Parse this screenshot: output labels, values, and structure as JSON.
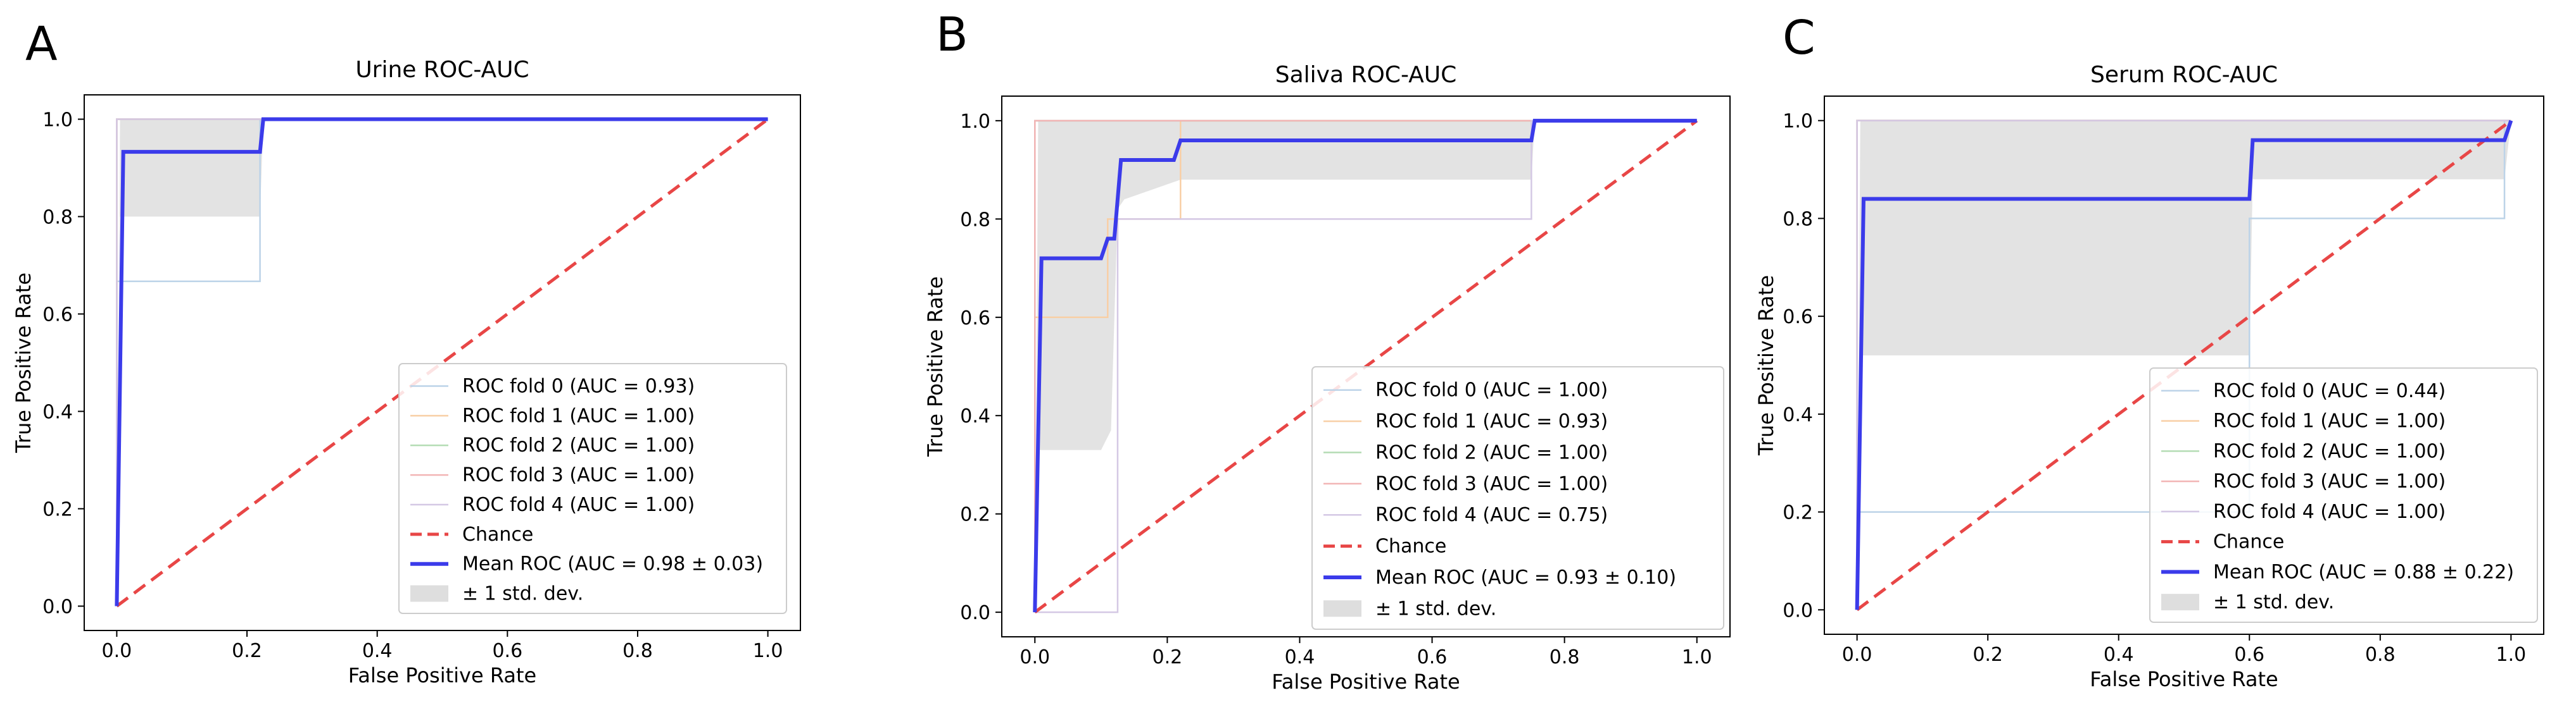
{
  "chart_data": [
    {
      "type": "line",
      "panel_letter": "A",
      "title": "Urine ROC-AUC",
      "xlabel": "False Positive Rate",
      "ylabel": "True Positive Rate",
      "xlim": [
        -0.05,
        1.05
      ],
      "ylim": [
        -0.05,
        1.05
      ],
      "xticks": [
        "0.0",
        "0.2",
        "0.4",
        "0.6",
        "0.8",
        "1.0"
      ],
      "yticks": [
        "0.0",
        "0.2",
        "0.4",
        "0.6",
        "0.8",
        "1.0"
      ],
      "legend_position": "lower right",
      "band": {
        "name": "± 1 std. dev.",
        "x": [
          0,
          0.005,
          0.22,
          0.225,
          1.0
        ],
        "upper": [
          0,
          1.0,
          1.0,
          1.0,
          1.0
        ],
        "lower": [
          0,
          0.8,
          0.8,
          1.0,
          1.0
        ]
      },
      "series": [
        {
          "name": "ROC fold 0 (AUC = 0.93)",
          "color": "#bcd3e8",
          "x": [
            0,
            0,
            0.22,
            0.22,
            1.0
          ],
          "y": [
            0,
            0.667,
            0.667,
            1.0,
            1.0
          ]
        },
        {
          "name": "ROC fold 1 (AUC = 1.00)",
          "color": "#f8cfa6",
          "x": [
            0,
            0,
            1.0
          ],
          "y": [
            0,
            1.0,
            1.0
          ]
        },
        {
          "name": "ROC fold 2 (AUC = 1.00)",
          "color": "#b4dcb4",
          "x": [
            0,
            0,
            1.0
          ],
          "y": [
            0,
            1.0,
            1.0
          ]
        },
        {
          "name": "ROC fold 3 (AUC = 1.00)",
          "color": "#f2b4b4",
          "x": [
            0,
            0,
            1.0
          ],
          "y": [
            0,
            1.0,
            1.0
          ]
        },
        {
          "name": "ROC fold 4 (AUC = 1.00)",
          "color": "#d4c8e4",
          "x": [
            0,
            0,
            1.0
          ],
          "y": [
            0,
            1.0,
            1.0
          ]
        },
        {
          "name": "Chance",
          "color": "#e84646",
          "dashed": true,
          "x": [
            0,
            1.0
          ],
          "y": [
            0,
            1.0
          ]
        },
        {
          "name": "Mean ROC (AUC = 0.98 ± 0.03)",
          "color": "#3b3bea",
          "bold": true,
          "x": [
            0,
            0.01,
            0.22,
            0.225,
            1.0
          ],
          "y": [
            0,
            0.933,
            0.933,
            1.0,
            1.0
          ]
        }
      ],
      "legend": [
        "ROC fold 0 (AUC = 0.93)",
        "ROC fold 1 (AUC = 1.00)",
        "ROC fold 2 (AUC = 1.00)",
        "ROC fold 3 (AUC = 1.00)",
        "ROC fold 4 (AUC = 1.00)",
        "Chance",
        "Mean ROC (AUC = 0.98 ± 0.03)",
        "± 1 std. dev."
      ]
    },
    {
      "type": "line",
      "panel_letter": "B",
      "title": "Saliva ROC-AUC",
      "xlabel": "False Positive Rate",
      "ylabel": "True Positive Rate",
      "xlim": [
        -0.05,
        1.05
      ],
      "ylim": [
        -0.05,
        1.05
      ],
      "xticks": [
        "0.0",
        "0.2",
        "0.4",
        "0.6",
        "0.8",
        "1.0"
      ],
      "yticks": [
        "0.0",
        "0.2",
        "0.4",
        "0.6",
        "0.8",
        "1.0"
      ],
      "legend_position": "lower right",
      "band": {
        "name": "± 1 std. dev.",
        "x": [
          0,
          0.005,
          0.1,
          0.115,
          0.125,
          0.135,
          0.22,
          0.225,
          0.75,
          0.755,
          1.0
        ],
        "upper": [
          0,
          1.0,
          1.0,
          1.0,
          1.0,
          1.0,
          1.0,
          1.0,
          1.0,
          1.0,
          1.0
        ],
        "lower": [
          0,
          0.33,
          0.33,
          0.37,
          0.82,
          0.84,
          0.88,
          0.88,
          0.88,
          1.0,
          1.0
        ]
      },
      "series": [
        {
          "name": "ROC fold 0 (AUC = 1.00)",
          "color": "#bcd3e8",
          "x": [
            0,
            0,
            1.0
          ],
          "y": [
            0,
            1.0,
            1.0
          ]
        },
        {
          "name": "ROC fold 1 (AUC = 0.93)",
          "color": "#f8cfa6",
          "x": [
            0,
            0,
            0.11,
            0.11,
            0.22,
            0.22,
            1.0
          ],
          "y": [
            0,
            0.6,
            0.6,
            0.8,
            0.8,
            1.0,
            1.0
          ]
        },
        {
          "name": "ROC fold 2 (AUC = 1.00)",
          "color": "#b4dcb4",
          "x": [
            0,
            0,
            1.0
          ],
          "y": [
            0,
            1.0,
            1.0
          ]
        },
        {
          "name": "ROC fold 3 (AUC = 1.00)",
          "color": "#f2b4b4",
          "x": [
            0,
            0,
            1.0
          ],
          "y": [
            0,
            1.0,
            1.0
          ]
        },
        {
          "name": "ROC fold 4 (AUC = 0.75)",
          "color": "#d4c8e4",
          "x": [
            0,
            0.125,
            0.125,
            0.75,
            0.75,
            1.0
          ],
          "y": [
            0,
            0,
            0.8,
            0.8,
            1.0,
            1.0
          ]
        },
        {
          "name": "Chance",
          "color": "#e84646",
          "dashed": true,
          "x": [
            0,
            1.0
          ],
          "y": [
            0,
            1.0
          ]
        },
        {
          "name": "Mean ROC (AUC = 0.93 ± 0.10)",
          "color": "#3b3bea",
          "bold": true,
          "x": [
            0,
            0.01,
            0.1,
            0.11,
            0.12,
            0.13,
            0.21,
            0.22,
            0.75,
            0.755,
            1.0
          ],
          "y": [
            0,
            0.72,
            0.72,
            0.76,
            0.76,
            0.92,
            0.92,
            0.96,
            0.96,
            1.0,
            1.0
          ]
        }
      ],
      "legend": [
        "ROC fold 0 (AUC = 1.00)",
        "ROC fold 1 (AUC = 0.93)",
        "ROC fold 2 (AUC = 1.00)",
        "ROC fold 3 (AUC = 1.00)",
        "ROC fold 4 (AUC = 0.75)",
        "Chance",
        "Mean ROC (AUC = 0.93 ± 0.10)",
        "± 1 std. dev."
      ]
    },
    {
      "type": "line",
      "panel_letter": "C",
      "title": "Serum ROC-AUC",
      "xlabel": "False Positive Rate",
      "ylabel": "True Positive Rate",
      "xlim": [
        -0.05,
        1.05
      ],
      "ylim": [
        -0.05,
        1.05
      ],
      "xticks": [
        "0.0",
        "0.2",
        "0.4",
        "0.6",
        "0.8",
        "1.0"
      ],
      "yticks": [
        "0.0",
        "0.2",
        "0.4",
        "0.6",
        "0.8",
        "1.0"
      ],
      "legend_position": "lower right",
      "band": {
        "name": "± 1 std. dev.",
        "x": [
          0,
          0.005,
          0.6,
          0.605,
          0.99,
          1.0
        ],
        "upper": [
          0,
          1.0,
          1.0,
          1.0,
          1.0,
          1.0
        ],
        "lower": [
          0,
          0.52,
          0.52,
          0.88,
          0.88,
          1.0
        ]
      },
      "series": [
        {
          "name": "ROC fold 0 (AUC = 0.44)",
          "color": "#bcd3e8",
          "x": [
            0,
            0,
            0.6,
            0.6,
            0.99,
            0.99,
            1.0
          ],
          "y": [
            0,
            0.2,
            0.2,
            0.8,
            0.8,
            1.0,
            1.0
          ]
        },
        {
          "name": "ROC fold 1 (AUC = 1.00)",
          "color": "#f8cfa6",
          "x": [
            0,
            0,
            1.0
          ],
          "y": [
            0,
            1.0,
            1.0
          ]
        },
        {
          "name": "ROC fold 2 (AUC = 1.00)",
          "color": "#b4dcb4",
          "x": [
            0,
            0,
            1.0
          ],
          "y": [
            0,
            1.0,
            1.0
          ]
        },
        {
          "name": "ROC fold 3 (AUC = 1.00)",
          "color": "#f2b4b4",
          "x": [
            0,
            0,
            1.0
          ],
          "y": [
            0,
            1.0,
            1.0
          ]
        },
        {
          "name": "ROC fold 4 (AUC = 1.00)",
          "color": "#d4c8e4",
          "x": [
            0,
            0,
            1.0
          ],
          "y": [
            0,
            1.0,
            1.0
          ]
        },
        {
          "name": "Chance",
          "color": "#e84646",
          "dashed": true,
          "x": [
            0,
            1.0
          ],
          "y": [
            0,
            1.0
          ]
        },
        {
          "name": "Mean ROC (AUC = 0.88 ± 0.22)",
          "color": "#3b3bea",
          "bold": true,
          "x": [
            0,
            0.01,
            0.6,
            0.605,
            0.99,
            1.0
          ],
          "y": [
            0,
            0.84,
            0.84,
            0.96,
            0.96,
            1.0
          ]
        }
      ],
      "legend": [
        "ROC fold 0 (AUC = 0.44)",
        "ROC fold 1 (AUC = 1.00)",
        "ROC fold 2 (AUC = 1.00)",
        "ROC fold 3 (AUC = 1.00)",
        "ROC fold 4 (AUC = 1.00)",
        "Chance",
        "Mean ROC (AUC = 0.88 ± 0.22)",
        "± 1 std. dev."
      ]
    }
  ]
}
